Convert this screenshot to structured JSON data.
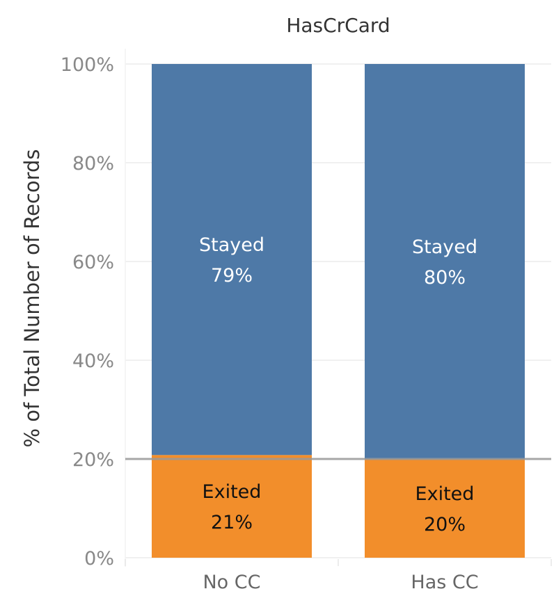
{
  "chart_data": {
    "type": "bar",
    "stacked": true,
    "title": "HasCrCard",
    "xlabel": "",
    "ylabel": "% of Total Number of Records",
    "categories": [
      "No CC",
      "Has CC"
    ],
    "series": [
      {
        "name": "Exited",
        "values": [
          20.8,
          20.0
        ],
        "color": "#f28e2b",
        "label_color": "#111111",
        "value_labels": [
          "21%",
          "20%"
        ]
      },
      {
        "name": "Stayed",
        "values": [
          79.2,
          80.0
        ],
        "color": "#4e79a7",
        "label_color": "#ffffff",
        "value_labels": [
          "79%",
          "80%"
        ]
      }
    ],
    "ylim": [
      0,
      100
    ],
    "yticks": [
      0,
      20,
      40,
      60,
      80,
      100
    ],
    "ytick_labels": [
      "0%",
      "20%",
      "40%",
      "60%",
      "80%",
      "100%"
    ],
    "reference_line": {
      "value": 20,
      "color": "#999999"
    },
    "grid": true,
    "legend": "none"
  }
}
